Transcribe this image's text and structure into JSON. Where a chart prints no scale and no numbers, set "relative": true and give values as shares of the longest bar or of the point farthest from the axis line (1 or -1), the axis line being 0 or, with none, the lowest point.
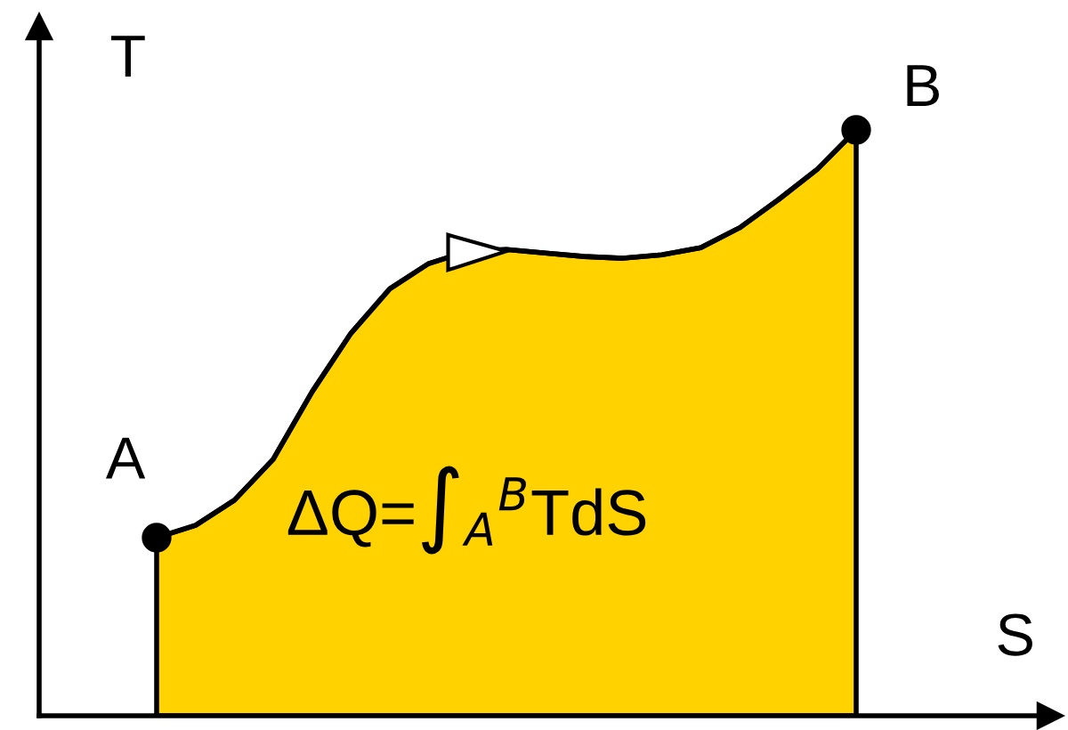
{
  "chart_data": {
    "type": "area",
    "relative": true,
    "xlabel": "S",
    "ylabel": "T",
    "categories": [
      null,
      null,
      null,
      null,
      null,
      null,
      null,
      null,
      null,
      null,
      null,
      null,
      null,
      null,
      null,
      null,
      null,
      null,
      null
    ],
    "series": [
      {
        "color": "#ffd200",
        "values": [
          0.304,
          0.325,
          0.368,
          0.438,
          0.553,
          0.653,
          0.729,
          0.772,
          0.793,
          0.796,
          0.79,
          0.784,
          0.781,
          0.787,
          0.799,
          0.833,
          0.881,
          0.933,
          1
        ]
      }
    ],
    "annotations": [
      "A",
      "B",
      "ΔQ=∫$_{A}$$^{B}$TdS"
    ]
  }
}
